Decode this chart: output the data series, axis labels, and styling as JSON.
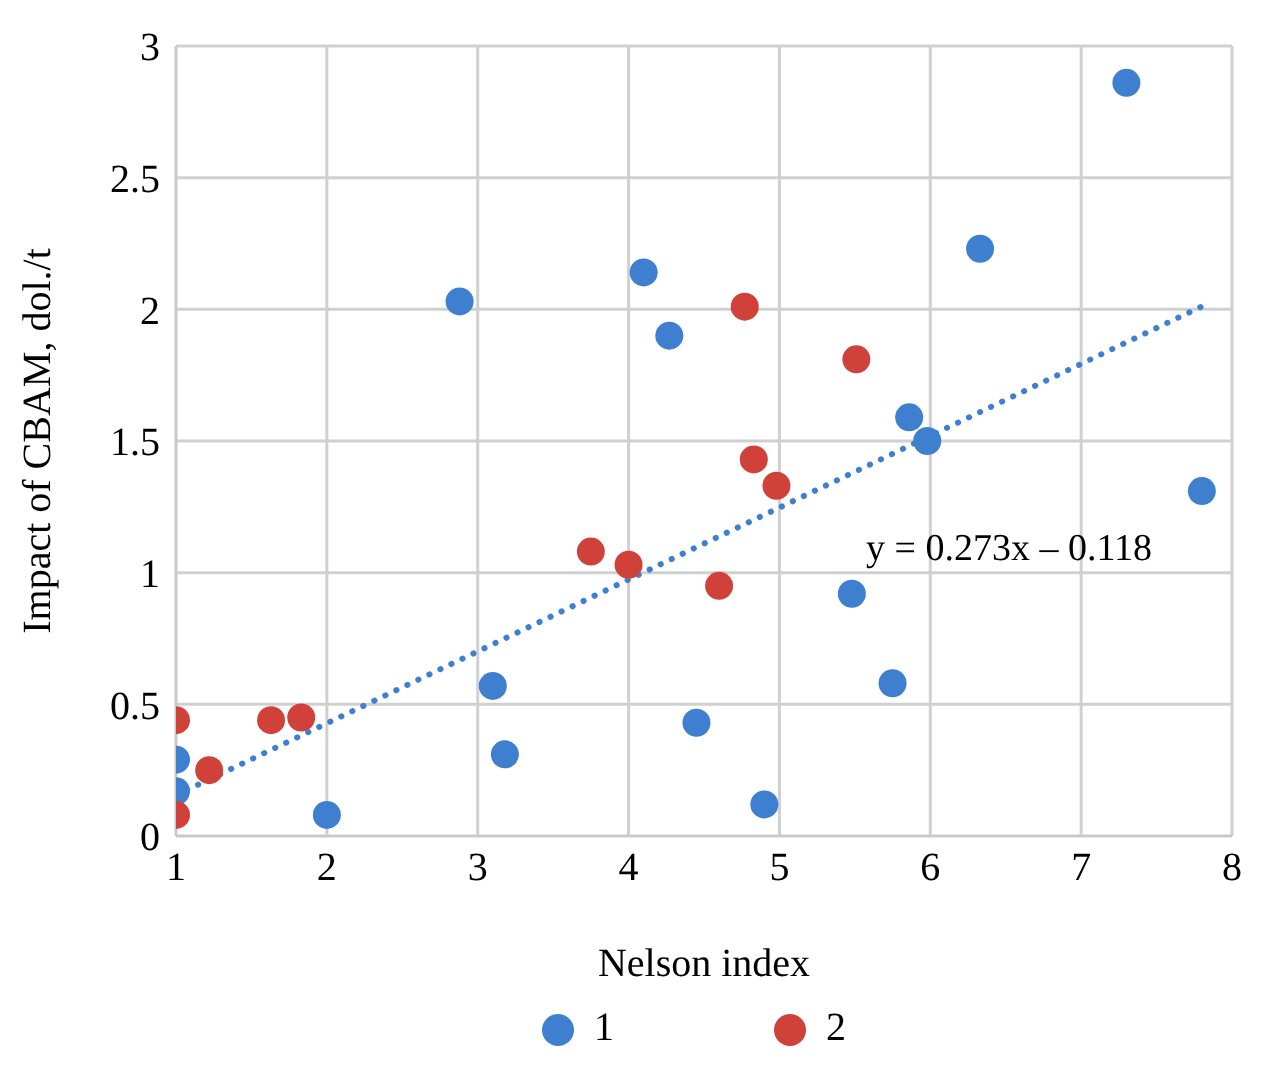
{
  "chart_data": {
    "type": "scatter",
    "xlabel": "Nelson index",
    "ylabel": "Impact of CBAM, dol./t",
    "xlim": [
      1,
      8
    ],
    "xticks": [
      1,
      2,
      3,
      4,
      5,
      6,
      7,
      8
    ],
    "ylim": [
      0,
      3
    ],
    "yticks": [
      0,
      0.5,
      1,
      1.5,
      2,
      2.5,
      3
    ],
    "grid": true,
    "legend": "bottom",
    "marker": "circle",
    "annotations": [
      "y = 0.273x – 0.118"
    ],
    "series": [
      {
        "name": "1",
        "color": "#3f7fcf",
        "x": [
          1,
          1,
          2,
          2.88,
          3.1,
          3.18,
          4.1,
          4.27,
          4.45,
          4.9,
          5.48,
          5.75,
          5.86,
          5.98,
          6.33,
          7.3,
          7.8
        ],
        "values": [
          0.29,
          0.17,
          0.08,
          2.03,
          0.57,
          0.31,
          2.14,
          1.9,
          0.43,
          0.12,
          0.92,
          0.58,
          1.59,
          1.5,
          2.23,
          2.86,
          1.31
        ]
      },
      {
        "name": "2",
        "color": "#d0413a",
        "x": [
          1,
          1,
          1.22,
          1.63,
          1.83,
          3.75,
          4,
          4.6,
          4.77,
          4.83,
          4.98,
          5.51
        ],
        "values": [
          0.44,
          0.08,
          0.25,
          0.44,
          0.45,
          1.08,
          1.03,
          0.95,
          2.01,
          1.43,
          1.33,
          1.81
        ]
      },
      {
        "type": "line",
        "color": "#3f7fcf",
        "line_style": "dotted",
        "marker": "none",
        "x": [
          1,
          7.8
        ],
        "values": [
          0.155,
          2.011
        ]
      }
    ]
  }
}
